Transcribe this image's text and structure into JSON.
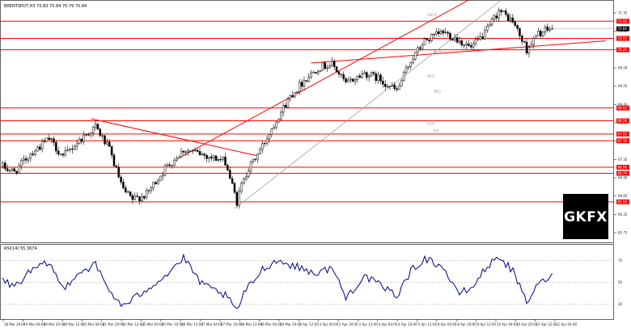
{
  "chart_data": {
    "type": "candlestick",
    "symbol_label": "BRENTSPOT,H3 70.83 70.84 70.79 70.84",
    "last_price": 70.84,
    "colors": {
      "up_candle": "#000000",
      "down_candle": "#000000",
      "horizontal_levels": "#ff0000",
      "trend_lines": "#ff0000",
      "regression_channel": "#a0a0a0",
      "rsi_line": "#00008b",
      "rsi_level_lines": "#a0a0a0",
      "grid": "none",
      "price_tags": "#ff0000",
      "current_price_tag": "#000000"
    },
    "price_axis": {
      "range": [
        64.9,
        71.6
      ],
      "tick_labels": [
        "71.35",
        "70.84",
        "70.11",
        "69.59",
        "69.25",
        "68.40",
        "68.11",
        "67.65",
        "67.35",
        "66.99",
        "66.65",
        "66.32",
        "65.75"
      ]
    },
    "horizontal_levels": [
      {
        "price": 71.05,
        "tag": "71.05"
      },
      {
        "price": 70.57,
        "tag": "70.57"
      },
      {
        "price": 70.25,
        "tag": "70.25"
      },
      {
        "price": 68.62,
        "tag": "68.62"
      },
      {
        "price": 68.26,
        "tag": "68.26"
      },
      {
        "price": 67.89,
        "tag": "67.89"
      },
      {
        "price": 67.7,
        "tag": "67.70"
      },
      {
        "price": 66.96,
        "tag": "66.96"
      },
      {
        "price": 66.79,
        "tag": "66.79"
      },
      {
        "price": 65.99,
        "tag": "65.99"
      }
    ],
    "fib_labels": [
      "100.0",
      "61.8",
      "50.0",
      "38.2",
      "23.6",
      "0.0"
    ],
    "time_axis": {
      "tick_labels": [
        "18 Mar 2019",
        "19 Mar 04:00",
        "19 Mar 20:00",
        "20 Mar 12:00",
        "21 Mar 04:00",
        "21 Mar 20:00",
        "22 Mar 12:00",
        "25 Mar 04:00",
        "25 Mar 20:00",
        "26 Mar 12:00",
        "27 Mar 04:00",
        "27 Mar 20:00",
        "28 Mar 12:00",
        "29 Mar 04:00",
        "29 Mar 20:00",
        "1 Apr 12:00",
        "2 Apr 04:00",
        "2 Apr 20:00",
        "3 Apr 12:00",
        "4 Apr 04:00",
        "4 Apr 20:00",
        "5 Apr 12:00",
        "8 Apr 04:00",
        "8 Apr 20:00",
        "9 Apr 12:00",
        "10 Apr 04:00",
        "10 Apr 20:00",
        "11 Apr 12:00",
        "12 Apr 04:00"
      ]
    },
    "price_path": [
      {
        "bar": 0,
        "price": 66.98
      },
      {
        "bar": 5,
        "price": 66.82
      },
      {
        "bar": 12,
        "price": 67.35
      },
      {
        "bar": 20,
        "price": 67.75
      },
      {
        "bar": 26,
        "price": 67.25
      },
      {
        "bar": 32,
        "price": 67.65
      },
      {
        "bar": 40,
        "price": 68.1
      },
      {
        "bar": 46,
        "price": 67.45
      },
      {
        "bar": 52,
        "price": 66.3
      },
      {
        "bar": 56,
        "price": 66.05
      },
      {
        "bar": 62,
        "price": 66.2
      },
      {
        "bar": 70,
        "price": 66.92
      },
      {
        "bar": 78,
        "price": 67.45
      },
      {
        "bar": 86,
        "price": 67.32
      },
      {
        "bar": 96,
        "price": 67.12
      },
      {
        "bar": 101,
        "price": 65.98
      },
      {
        "bar": 104,
        "price": 66.7
      },
      {
        "bar": 112,
        "price": 67.55
      },
      {
        "bar": 118,
        "price": 68.3
      },
      {
        "bar": 124,
        "price": 68.95
      },
      {
        "bar": 130,
        "price": 69.4
      },
      {
        "bar": 136,
        "price": 69.75
      },
      {
        "bar": 142,
        "price": 69.85
      },
      {
        "bar": 148,
        "price": 69.3
      },
      {
        "bar": 156,
        "price": 69.6
      },
      {
        "bar": 162,
        "price": 69.45
      },
      {
        "bar": 170,
        "price": 69.1
      },
      {
        "bar": 176,
        "price": 69.95
      },
      {
        "bar": 182,
        "price": 70.5
      },
      {
        "bar": 190,
        "price": 70.75
      },
      {
        "bar": 196,
        "price": 70.55
      },
      {
        "bar": 202,
        "price": 70.3
      },
      {
        "bar": 208,
        "price": 70.7
      },
      {
        "bar": 214,
        "price": 71.35
      },
      {
        "bar": 220,
        "price": 71.05
      },
      {
        "bar": 226,
        "price": 70.25
      },
      {
        "bar": 231,
        "price": 70.7
      },
      {
        "bar": 236,
        "price": 70.84
      }
    ],
    "trend_lines": [
      {
        "from": {
          "bar": 38,
          "price": 68.32
        },
        "to": {
          "bar": 110,
          "price": 67.28
        }
      },
      {
        "from": {
          "bar": 76,
          "price": 67.22
        },
        "to": {
          "bar": 228,
          "price": 72.6
        }
      },
      {
        "from": {
          "bar": 133,
          "price": 69.88
        },
        "to": {
          "bar": 260,
          "price": 70.5
        }
      }
    ],
    "regression_channel": {
      "from": {
        "bar": 100,
        "price": 65.8
      },
      "to": {
        "bar": 228,
        "price": 72.3
      }
    },
    "rsi": {
      "label": "RSI(14) 55.3674",
      "range": [
        18,
        82
      ],
      "levels": [
        70,
        50,
        30
      ],
      "tick_labels": [
        "70",
        "50",
        "30"
      ],
      "path": [
        {
          "bar": 0,
          "value": 52
        },
        {
          "bar": 5,
          "value": 46
        },
        {
          "bar": 12,
          "value": 60
        },
        {
          "bar": 20,
          "value": 68
        },
        {
          "bar": 26,
          "value": 44
        },
        {
          "bar": 32,
          "value": 58
        },
        {
          "bar": 40,
          "value": 66
        },
        {
          "bar": 46,
          "value": 42
        },
        {
          "bar": 52,
          "value": 28
        },
        {
          "bar": 56,
          "value": 34
        },
        {
          "bar": 62,
          "value": 44
        },
        {
          "bar": 70,
          "value": 56
        },
        {
          "bar": 78,
          "value": 72
        },
        {
          "bar": 86,
          "value": 48
        },
        {
          "bar": 96,
          "value": 38
        },
        {
          "bar": 101,
          "value": 24
        },
        {
          "bar": 104,
          "value": 40
        },
        {
          "bar": 112,
          "value": 62
        },
        {
          "bar": 118,
          "value": 70
        },
        {
          "bar": 124,
          "value": 66
        },
        {
          "bar": 130,
          "value": 62
        },
        {
          "bar": 136,
          "value": 58
        },
        {
          "bar": 142,
          "value": 64
        },
        {
          "bar": 148,
          "value": 36
        },
        {
          "bar": 156,
          "value": 56
        },
        {
          "bar": 162,
          "value": 48
        },
        {
          "bar": 170,
          "value": 38
        },
        {
          "bar": 176,
          "value": 60
        },
        {
          "bar": 182,
          "value": 72
        },
        {
          "bar": 190,
          "value": 64
        },
        {
          "bar": 196,
          "value": 40
        },
        {
          "bar": 202,
          "value": 44
        },
        {
          "bar": 208,
          "value": 62
        },
        {
          "bar": 214,
          "value": 74
        },
        {
          "bar": 220,
          "value": 60
        },
        {
          "bar": 226,
          "value": 32
        },
        {
          "bar": 231,
          "value": 48
        },
        {
          "bar": 236,
          "value": 55.37
        }
      ]
    }
  },
  "logo": {
    "text": "GKFX"
  }
}
